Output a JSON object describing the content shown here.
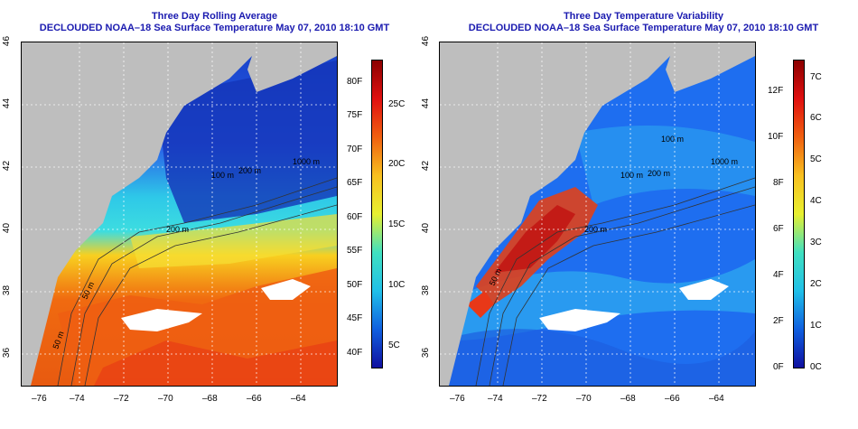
{
  "left": {
    "title_line1": "Three Day Rolling Average",
    "title_line2": "DECLOUDED NOAA–18 Sea Surface Temperature May 07, 2010 18:10 GMT",
    "colorbar_f": [
      "80F",
      "75F",
      "70F",
      "65F",
      "60F",
      "55F",
      "50F",
      "45F",
      "40F"
    ],
    "colorbar_c": [
      "25C",
      "20C",
      "15C",
      "10C",
      "5C"
    ],
    "contours": [
      "1000 m",
      "200 m",
      "100 m",
      "200 m",
      "50 m",
      "50 m"
    ]
  },
  "right": {
    "title_line1": "Three Day Temperature Variability",
    "title_line2": "DECLOUDED NOAA–18 Sea Surface Temperature May 07, 2010 18:10 GMT",
    "colorbar_f": [
      "12F",
      "10F",
      "8F",
      "6F",
      "4F",
      "2F",
      "0F"
    ],
    "colorbar_c": [
      "7C",
      "6C",
      "5C",
      "4C",
      "3C",
      "2C",
      "1C",
      "0C"
    ],
    "contours": [
      "1000 m",
      "100 m",
      "200 m",
      "100 m",
      "200 m",
      "50 m"
    ]
  },
  "axes": {
    "x_ticks": [
      "–76",
      "–74",
      "–72",
      "–70",
      "–68",
      "–66",
      "–64"
    ],
    "y_ticks": [
      "36",
      "38",
      "40",
      "42",
      "44",
      "46"
    ]
  },
  "colors": {
    "land": "#bebebe",
    "title": "#1b1bb0",
    "cloud_mask": "#ffffff"
  }
}
